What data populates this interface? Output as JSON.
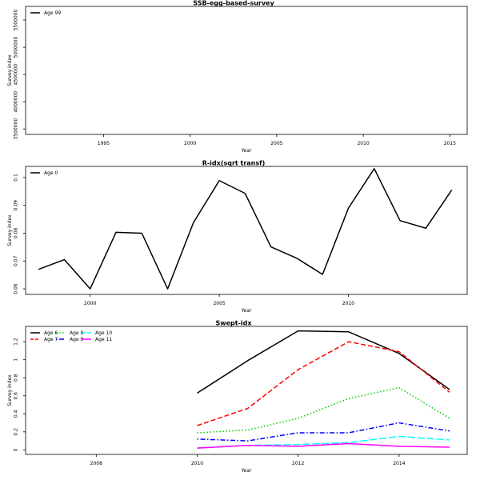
{
  "chart_data": [
    {
      "type": "line",
      "title": "SSB-egg-based-survey",
      "xlabel": "Year",
      "ylabel": "Survey index",
      "xlim": [
        1990.5,
        2016
      ],
      "ylim": [
        3400000,
        5750000
      ],
      "xticks": [
        1995,
        2000,
        2005,
        2010,
        2015
      ],
      "yticks": [
        3500000,
        4000000,
        4500000,
        5000000,
        5500000
      ],
      "legend_position": "top-left",
      "legend_columns": 1,
      "series": [
        {
          "name": "Age 99",
          "color": "#000000",
          "dash": "solid",
          "x": [],
          "y": []
        }
      ]
    },
    {
      "type": "line",
      "title": "R-idx(sqrt transf)",
      "xlabel": "Year",
      "ylabel": "Survey index",
      "xlim": [
        1997.5,
        2014.6
      ],
      "ylim": [
        0.058,
        0.104
      ],
      "xticks": [
        2000,
        2005,
        2010
      ],
      "yticks": [
        0.06,
        0.07,
        0.08,
        0.09,
        0.1
      ],
      "legend_position": "top-left",
      "legend_columns": 1,
      "series": [
        {
          "name": "Age 0",
          "color": "#000000",
          "dash": "solid",
          "x": [
            1998,
            1999,
            2000,
            2001,
            2002,
            2003,
            2004,
            2005,
            2006,
            2007,
            2008,
            2009,
            2010,
            2011,
            2012,
            2013,
            2014
          ],
          "y": [
            0.067,
            0.0705,
            0.06,
            0.0803,
            0.08,
            0.06,
            0.0838,
            0.0989,
            0.0943,
            0.0751,
            0.071,
            0.0652,
            0.089,
            0.1032,
            0.0845,
            0.0818,
            0.0955
          ]
        }
      ]
    },
    {
      "type": "line",
      "title": "Swept-idx",
      "xlabel": "Year",
      "ylabel": "Survey index",
      "xlim": [
        2006.6,
        2015.35
      ],
      "ylim": [
        -0.05,
        1.37
      ],
      "xticks": [
        2008,
        2010,
        2012,
        2014
      ],
      "yticks": [
        0.0,
        0.2,
        0.4,
        0.6,
        0.8,
        1.0,
        1.2
      ],
      "legend_position": "top-left",
      "legend_columns": 3,
      "series": [
        {
          "name": "Age 6",
          "color": "#000000",
          "dash": "solid",
          "x": [
            2010,
            2011,
            2012,
            2013,
            2014,
            2015
          ],
          "y": [
            0.63,
            0.99,
            1.32,
            1.31,
            1.07,
            0.67
          ]
        },
        {
          "name": "Age 7",
          "color": "#ff0000",
          "dash": "dashed",
          "x": [
            2010,
            2011,
            2012,
            2013,
            2014,
            2015
          ],
          "y": [
            0.27,
            0.46,
            0.89,
            1.2,
            1.09,
            0.64
          ]
        },
        {
          "name": "Age 8",
          "color": "#00cd00",
          "dash": "dotted",
          "x": [
            2010,
            2011,
            2012,
            2013,
            2014,
            2015
          ],
          "y": [
            0.19,
            0.22,
            0.35,
            0.57,
            0.69,
            0.35
          ]
        },
        {
          "name": "Age 9",
          "color": "#0000ff",
          "dash": "dotdash",
          "x": [
            2010,
            2011,
            2012,
            2013,
            2014,
            2015
          ],
          "y": [
            0.12,
            0.1,
            0.19,
            0.19,
            0.3,
            0.21
          ]
        },
        {
          "name": "Age 10",
          "color": "#00ffff",
          "dash": "longdash",
          "x": [
            2010,
            2011,
            2012,
            2013,
            2014,
            2015
          ],
          "y": [
            0.02,
            0.05,
            0.06,
            0.08,
            0.15,
            0.11
          ]
        },
        {
          "name": "Age 11",
          "color": "#ff00ff",
          "dash": "solid",
          "x": [
            2010,
            2011,
            2012,
            2013,
            2014,
            2015
          ],
          "y": [
            0.02,
            0.05,
            0.04,
            0.07,
            0.04,
            0.03
          ]
        }
      ]
    }
  ]
}
